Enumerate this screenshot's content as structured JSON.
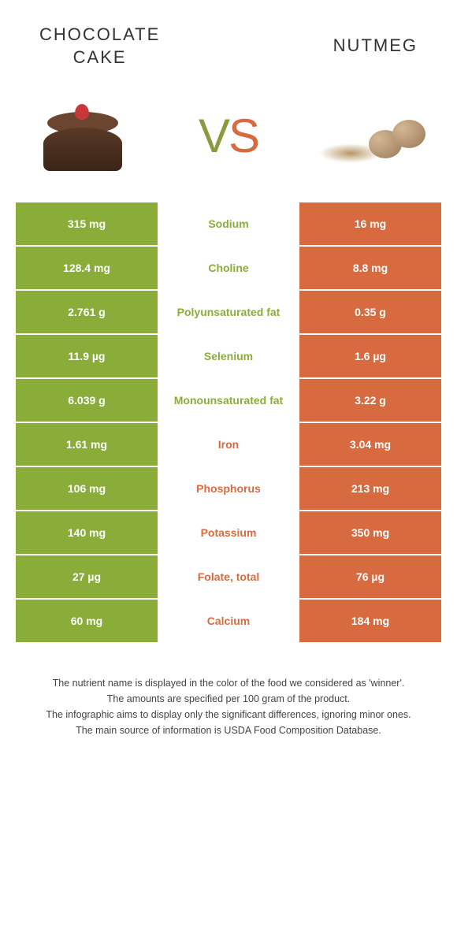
{
  "header": {
    "left_title": "CHOCOLATE\nCAKE",
    "right_title": "NUTMEG",
    "vs_v": "V",
    "vs_s": "S"
  },
  "colors": {
    "green": "#8aad3a",
    "orange": "#d76b3f"
  },
  "rows": [
    {
      "left": "315 mg",
      "mid": "Sodium",
      "right": "16 mg",
      "winner": "left"
    },
    {
      "left": "128.4 mg",
      "mid": "Choline",
      "right": "8.8 mg",
      "winner": "left"
    },
    {
      "left": "2.761 g",
      "mid": "Polyunsaturated fat",
      "right": "0.35 g",
      "winner": "left"
    },
    {
      "left": "11.9 µg",
      "mid": "Selenium",
      "right": "1.6 µg",
      "winner": "left"
    },
    {
      "left": "6.039 g",
      "mid": "Monounsaturated fat",
      "right": "3.22 g",
      "winner": "left"
    },
    {
      "left": "1.61 mg",
      "mid": "Iron",
      "right": "3.04 mg",
      "winner": "right"
    },
    {
      "left": "106 mg",
      "mid": "Phosphorus",
      "right": "213 mg",
      "winner": "right"
    },
    {
      "left": "140 mg",
      "mid": "Potassium",
      "right": "350 mg",
      "winner": "right"
    },
    {
      "left": "27 µg",
      "mid": "Folate, total",
      "right": "76 µg",
      "winner": "right"
    },
    {
      "left": "60 mg",
      "mid": "Calcium",
      "right": "184 mg",
      "winner": "right"
    }
  ],
  "footnotes": {
    "line1": "The nutrient name is displayed in the color of the food we considered as 'winner'.",
    "line2": "The amounts are specified per 100 gram of the product.",
    "line3": "The infographic aims to display only the significant differences, ignoring minor ones.",
    "line4": "The main source of information is USDA Food Composition Database."
  }
}
